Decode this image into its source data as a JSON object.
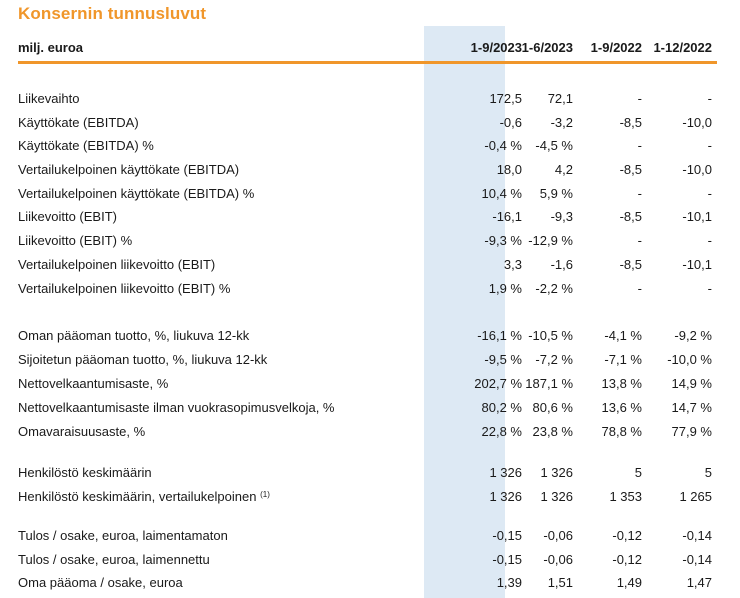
{
  "title": "Konsernin tunnusluvut",
  "header": {
    "label": "milj. euroa",
    "columns": [
      "1-9/2023",
      "1-6/2023",
      "1-9/2022",
      "1-12/2022"
    ]
  },
  "rows": [
    {
      "label": "Liikevaihto",
      "values": [
        "172,5",
        "72,1",
        "-",
        "-"
      ]
    },
    {
      "label": "Käyttökate (EBITDA)",
      "values": [
        "-0,6",
        "-3,2",
        "-8,5",
        "-10,0"
      ]
    },
    {
      "label": "Käyttökate (EBITDA) %",
      "values": [
        "-0,4 %",
        "-4,5 %",
        "-",
        "-"
      ]
    },
    {
      "label": "Vertailukelpoinen käyttökate (EBITDA)",
      "values": [
        "18,0",
        "4,2",
        "-8,5",
        "-10,0"
      ]
    },
    {
      "label": "Vertailukelpoinen käyttökate (EBITDA) %",
      "values": [
        "10,4 %",
        "5,9 %",
        "-",
        "-"
      ]
    },
    {
      "label": "Liikevoitto (EBIT)",
      "values": [
        "-16,1",
        "-9,3",
        "-8,5",
        "-10,1"
      ]
    },
    {
      "label": "Liikevoitto (EBIT) %",
      "values": [
        "-9,3 %",
        "-12,9 %",
        "-",
        "-"
      ]
    },
    {
      "label": "Vertailukelpoinen liikevoitto (EBIT)",
      "values": [
        "3,3",
        "-1,6",
        "-8,5",
        "-10,1"
      ]
    },
    {
      "label": "Vertailukelpoinen liikevoitto (EBIT) %",
      "values": [
        "1,9 %",
        "-2,2 %",
        "-",
        "-"
      ]
    },
    {
      "label": "Oman pääoman tuotto, %, liukuva 12-kk",
      "values": [
        "-16,1 %",
        "-10,5 %",
        "-4,1 %",
        "-9,2 %"
      ]
    },
    {
      "label": "Sijoitetun pääoman tuotto, %, liukuva 12-kk",
      "values": [
        "-9,5 %",
        "-7,2 %",
        "-7,1 %",
        "-10,0 %"
      ]
    },
    {
      "label": "Nettovelkaantumisaste, %",
      "values": [
        "202,7 %",
        "187,1 %",
        "13,8 %",
        "14,9 %"
      ]
    },
    {
      "label": "Nettovelkaantumisaste ilman vuokrasopimusvelkoja, %",
      "values": [
        "80,2 %",
        "80,6 %",
        "13,6 %",
        "14,7 %"
      ]
    },
    {
      "label": "Omavaraisuusaste, %",
      "values": [
        "22,8 %",
        "23,8 %",
        "78,8 %",
        "77,9 %"
      ]
    },
    {
      "label": "Henkilöstö keskimäärin",
      "values": [
        "1 326",
        "1 326",
        "5",
        "5"
      ]
    },
    {
      "label": "Henkilöstö keskimäärin, vertailukelpoinen",
      "footnote": "(1)",
      "values": [
        "1 326",
        "1 326",
        "1 353",
        "1 265"
      ]
    },
    {
      "label": "Tulos / osake, euroa, laimentamaton",
      "values": [
        "-0,15",
        "-0,06",
        "-0,12",
        "-0,14"
      ]
    },
    {
      "label": "Tulos / osake, euroa, laimennettu",
      "values": [
        "-0,15",
        "-0,06",
        "-0,12",
        "-0,14"
      ]
    },
    {
      "label": "Oma pääoma / osake, euroa",
      "values": [
        "1,39",
        "1,51",
        "1,49",
        "1,47"
      ]
    }
  ],
  "colors": {
    "accent": "#f0962a",
    "highlight_column": "#dde9f4"
  }
}
